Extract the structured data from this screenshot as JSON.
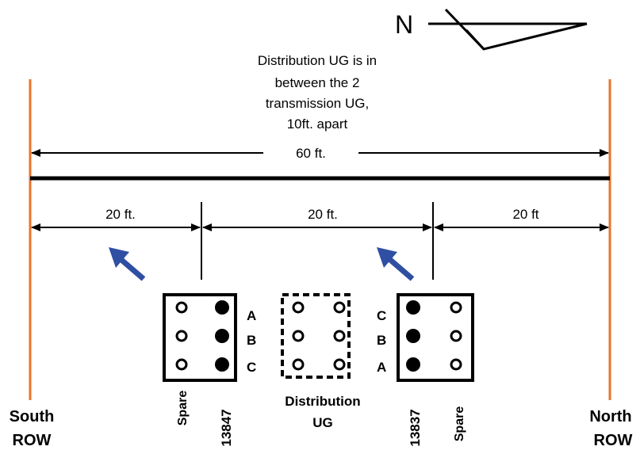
{
  "north_label": "N",
  "note_lines": [
    "Distribution UG is in",
    "between the 2",
    "transmission UG,",
    "10ft. apart"
  ],
  "dim_total": "60 ft.",
  "dim_left": "20 ft.",
  "dim_middle": "20 ft.",
  "dim_right": "20 ft",
  "left_bank_phases": [
    "A",
    "B",
    "C"
  ],
  "right_bank_phases": [
    "C",
    "B",
    "A"
  ],
  "left_bank_col_labels": [
    "Spare",
    "13847"
  ],
  "right_bank_col_labels": [
    "13837",
    "Spare"
  ],
  "distribution_label_lines": [
    "Distribution",
    "UG"
  ],
  "south_label_lines": [
    "South",
    "ROW"
  ],
  "north_label_lines": [
    "North",
    "ROW"
  ],
  "colors": {
    "row_line": "#E8742A",
    "arrow_blue": "#2F4FA3",
    "line": "#000000"
  }
}
